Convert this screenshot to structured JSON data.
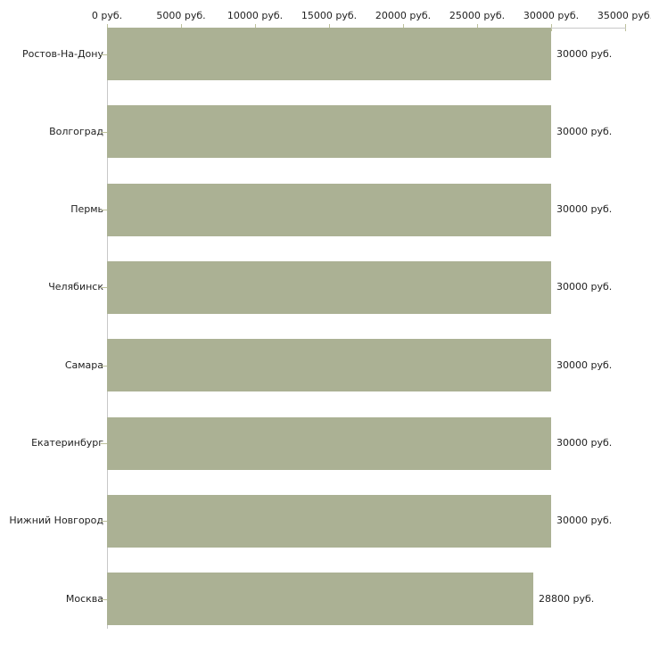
{
  "chart": {
    "background_color": "#ffffff",
    "bar_color": "#abb194",
    "axis_line_color": "#c8c8c8",
    "tick_color": "#bdc19c",
    "text_color": "#222222"
  },
  "chart_data": {
    "type": "bar",
    "orientation": "horizontal",
    "title": "",
    "xlabel": "",
    "ylabel": "",
    "grid": false,
    "legend_position": "none",
    "xlim": [
      0,
      35000
    ],
    "x_ticks": [
      0,
      5000,
      10000,
      15000,
      20000,
      25000,
      30000,
      35000
    ],
    "x_tick_labels": [
      "0 руб.",
      "5000 руб.",
      "10000 руб.",
      "15000 руб.",
      "20000 руб.",
      "25000 руб.",
      "30000 руб.",
      "35000 руб."
    ],
    "categories": [
      "Ростов-На-Дону",
      "Волгоград",
      "Пермь",
      "Челябинск",
      "Самара",
      "Екатеринбург",
      "Нижний Новгород",
      "Москва"
    ],
    "values": [
      30000,
      30000,
      30000,
      30000,
      30000,
      30000,
      30000,
      28800
    ],
    "value_labels": [
      "30000 руб.",
      "30000 руб.",
      "30000 руб.",
      "30000 руб.",
      "30000 руб.",
      "30000 руб.",
      "30000 руб.",
      "28800 руб."
    ]
  }
}
